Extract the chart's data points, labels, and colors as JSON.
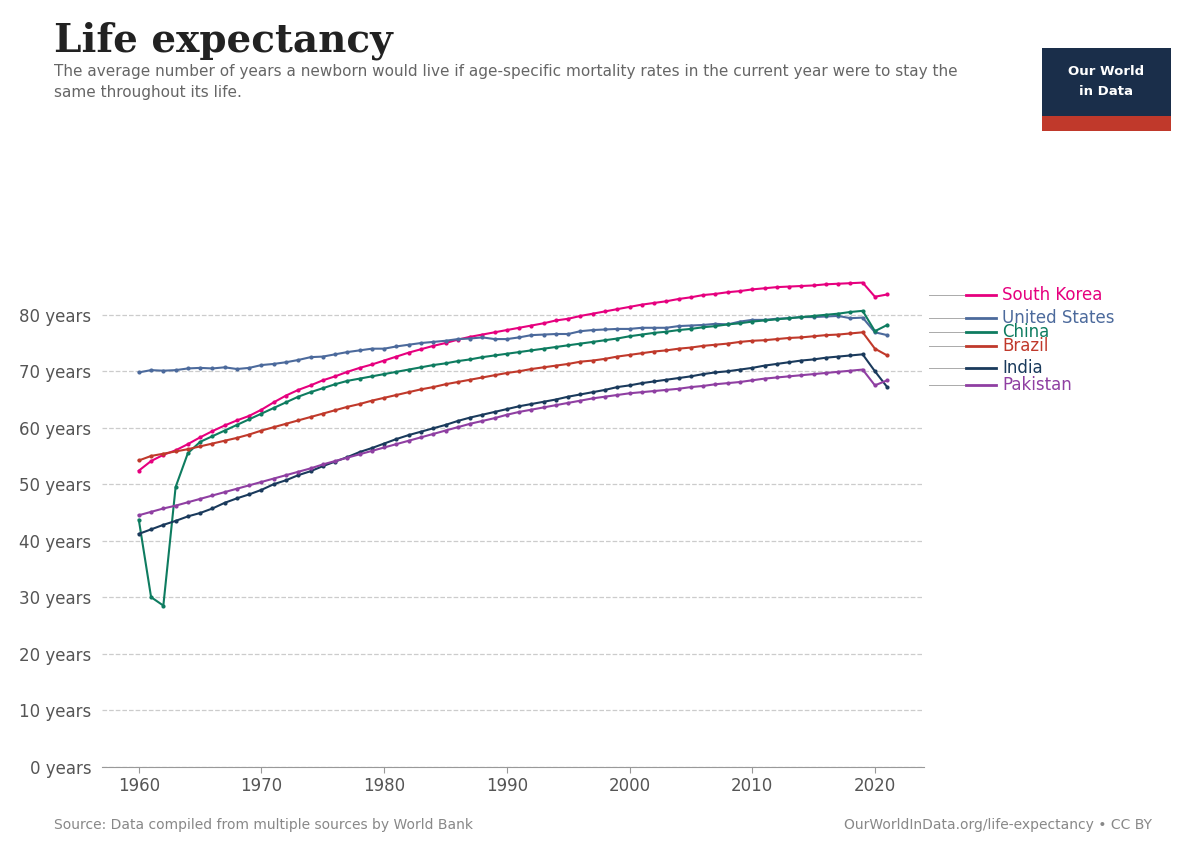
{
  "title": "Life expectancy",
  "subtitle": "The average number of years a newborn would live if age-specific mortality rates in the current year were to stay the\nsame throughout its life.",
  "source": "Source: Data compiled from multiple sources by World Bank",
  "url": "OurWorldInData.org/life-expectancy • CC BY",
  "years": [
    1960,
    1961,
    1962,
    1963,
    1964,
    1965,
    1966,
    1967,
    1968,
    1969,
    1970,
    1971,
    1972,
    1973,
    1974,
    1975,
    1976,
    1977,
    1978,
    1979,
    1980,
    1981,
    1982,
    1983,
    1984,
    1985,
    1986,
    1987,
    1988,
    1989,
    1990,
    1991,
    1992,
    1993,
    1994,
    1995,
    1996,
    1997,
    1998,
    1999,
    2000,
    2001,
    2002,
    2003,
    2004,
    2005,
    2006,
    2007,
    2008,
    2009,
    2010,
    2011,
    2012,
    2013,
    2014,
    2015,
    2016,
    2017,
    2018,
    2019,
    2020,
    2021
  ],
  "series": {
    "South Korea": {
      "color": "#e6007e",
      "data": [
        52.4,
        54.1,
        55.2,
        56.0,
        57.1,
        58.3,
        59.4,
        60.4,
        61.3,
        62.1,
        63.2,
        64.5,
        65.7,
        66.7,
        67.5,
        68.4,
        69.1,
        69.9,
        70.6,
        71.2,
        71.9,
        72.6,
        73.3,
        73.9,
        74.5,
        75.0,
        75.6,
        76.1,
        76.5,
        76.9,
        77.3,
        77.7,
        78.1,
        78.5,
        79.0,
        79.3,
        79.8,
        80.2,
        80.6,
        81.0,
        81.4,
        81.8,
        82.1,
        82.4,
        82.8,
        83.1,
        83.5,
        83.7,
        84.0,
        84.2,
        84.5,
        84.7,
        84.9,
        85.0,
        85.1,
        85.2,
        85.4,
        85.5,
        85.6,
        85.7,
        83.2,
        83.6
      ]
    },
    "United States": {
      "color": "#4c6a9c",
      "data": [
        69.8,
        70.2,
        70.1,
        70.2,
        70.5,
        70.6,
        70.5,
        70.7,
        70.4,
        70.6,
        71.1,
        71.3,
        71.6,
        72.0,
        72.5,
        72.6,
        73.0,
        73.4,
        73.7,
        74.0,
        74.0,
        74.4,
        74.7,
        75.0,
        75.2,
        75.4,
        75.7,
        75.8,
        76.0,
        75.7,
        75.7,
        76.0,
        76.4,
        76.5,
        76.6,
        76.6,
        77.1,
        77.3,
        77.4,
        77.5,
        77.5,
        77.7,
        77.7,
        77.7,
        78.0,
        78.1,
        78.2,
        78.4,
        78.3,
        78.8,
        79.1,
        79.1,
        79.3,
        79.4,
        79.6,
        79.6,
        79.7,
        79.8,
        79.4,
        79.5,
        76.9,
        76.4
      ]
    },
    "China": {
      "color": "#0e7c60",
      "data": [
        43.7,
        30.0,
        28.5,
        49.5,
        55.5,
        57.5,
        58.5,
        59.5,
        60.5,
        61.5,
        62.5,
        63.5,
        64.5,
        65.5,
        66.3,
        67.0,
        67.7,
        68.3,
        68.7,
        69.1,
        69.5,
        69.9,
        70.3,
        70.7,
        71.1,
        71.4,
        71.8,
        72.1,
        72.5,
        72.8,
        73.1,
        73.4,
        73.7,
        74.0,
        74.3,
        74.6,
        74.9,
        75.2,
        75.5,
        75.8,
        76.2,
        76.5,
        76.8,
        77.0,
        77.3,
        77.5,
        77.8,
        78.0,
        78.3,
        78.5,
        78.8,
        79.0,
        79.2,
        79.4,
        79.6,
        79.8,
        80.0,
        80.2,
        80.5,
        80.7,
        77.1,
        78.2
      ]
    },
    "Brazil": {
      "color": "#c0392b",
      "data": [
        54.2,
        55.0,
        55.4,
        55.8,
        56.2,
        56.7,
        57.2,
        57.7,
        58.2,
        58.8,
        59.5,
        60.1,
        60.7,
        61.3,
        61.9,
        62.5,
        63.1,
        63.7,
        64.2,
        64.8,
        65.3,
        65.8,
        66.3,
        66.8,
        67.2,
        67.7,
        68.1,
        68.5,
        68.9,
        69.3,
        69.7,
        70.0,
        70.4,
        70.7,
        71.0,
        71.3,
        71.7,
        71.9,
        72.2,
        72.6,
        72.9,
        73.2,
        73.5,
        73.7,
        74.0,
        74.2,
        74.5,
        74.7,
        74.9,
        75.2,
        75.4,
        75.5,
        75.7,
        75.9,
        76.0,
        76.2,
        76.4,
        76.5,
        76.7,
        76.9,
        74.0,
        72.8
      ]
    },
    "India": {
      "color": "#1a3a5c",
      "data": [
        41.2,
        42.0,
        42.8,
        43.5,
        44.3,
        44.9,
        45.7,
        46.7,
        47.5,
        48.2,
        49.0,
        50.0,
        50.7,
        51.6,
        52.3,
        53.2,
        54.0,
        54.8,
        55.7,
        56.4,
        57.2,
        58.0,
        58.7,
        59.3,
        59.9,
        60.5,
        61.2,
        61.8,
        62.3,
        62.8,
        63.3,
        63.8,
        64.2,
        64.6,
        65.0,
        65.5,
        65.9,
        66.3,
        66.7,
        67.2,
        67.5,
        67.9,
        68.2,
        68.5,
        68.8,
        69.1,
        69.5,
        69.8,
        70.0,
        70.3,
        70.6,
        71.0,
        71.3,
        71.6,
        71.9,
        72.1,
        72.4,
        72.6,
        72.8,
        73.0,
        70.0,
        67.2
      ]
    },
    "Pakistan": {
      "color": "#8f3fa2",
      "data": [
        44.5,
        45.1,
        45.7,
        46.2,
        46.8,
        47.4,
        48.0,
        48.6,
        49.2,
        49.8,
        50.4,
        51.0,
        51.6,
        52.2,
        52.8,
        53.5,
        54.1,
        54.7,
        55.3,
        55.9,
        56.5,
        57.1,
        57.7,
        58.3,
        58.9,
        59.5,
        60.1,
        60.7,
        61.2,
        61.7,
        62.3,
        62.8,
        63.2,
        63.6,
        64.0,
        64.4,
        64.8,
        65.2,
        65.5,
        65.8,
        66.1,
        66.3,
        66.5,
        66.7,
        66.9,
        67.2,
        67.4,
        67.7,
        67.9,
        68.1,
        68.4,
        68.7,
        68.9,
        69.1,
        69.3,
        69.5,
        69.7,
        69.9,
        70.1,
        70.3,
        67.5,
        68.4
      ]
    }
  },
  "ylim": [
    0,
    90
  ],
  "yticks": [
    0,
    10,
    20,
    30,
    40,
    50,
    60,
    70,
    80
  ],
  "ytick_labels": [
    "0 years",
    "10 years",
    "20 years",
    "30 years",
    "40 years",
    "50 years",
    "60 years",
    "70 years",
    "80 years"
  ],
  "xlim": [
    1957,
    2024
  ],
  "xticks": [
    1960,
    1970,
    1980,
    1990,
    2000,
    2010,
    2020
  ],
  "background_color": "#ffffff",
  "grid_color": "#cccccc",
  "logo_bg": "#1a2e4a",
  "logo_red": "#c0392b",
  "legend_order": [
    "South Korea",
    "United States",
    "China",
    "Brazil",
    "India",
    "Pakistan"
  ]
}
